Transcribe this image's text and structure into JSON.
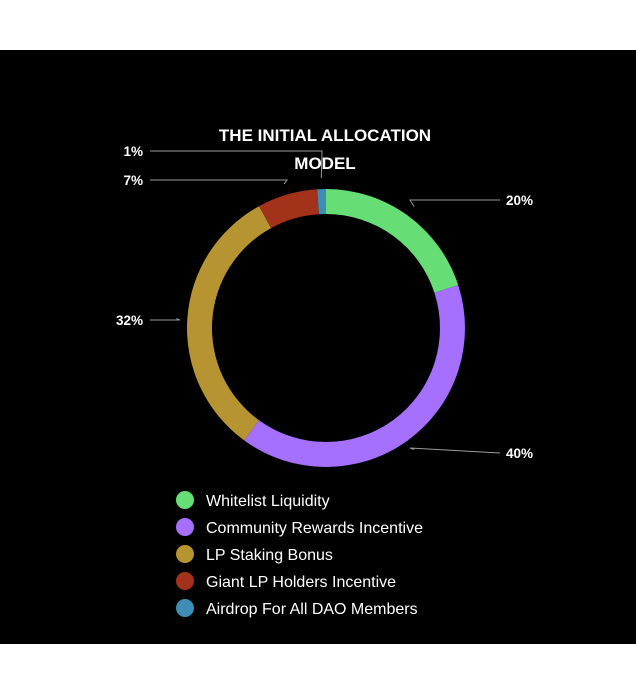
{
  "chart_data": {
    "type": "pie",
    "donut": true,
    "title_lines": [
      "THE INITIAL ALLOCATION",
      "MODEL"
    ],
    "start_angle_deg": 0,
    "slices": [
      {
        "label": "Whitelist Liquidity",
        "value": 20,
        "value_label": "20%",
        "color": "#66DE75"
      },
      {
        "label": "Community Rewards Incentive",
        "value": 40,
        "value_label": "40%",
        "color": "#A670FF"
      },
      {
        "label": "LP Staking Bonus",
        "value": 32,
        "value_label": "32%",
        "color": "#B69432"
      },
      {
        "label": "Giant LP Holders Incentive",
        "value": 7,
        "value_label": "7%",
        "color": "#A23219"
      },
      {
        "label": "Airdrop For All DAO Members",
        "value": 1,
        "value_label": "1%",
        "color": "#3D8DB4"
      }
    ],
    "legend_position": "bottom"
  }
}
